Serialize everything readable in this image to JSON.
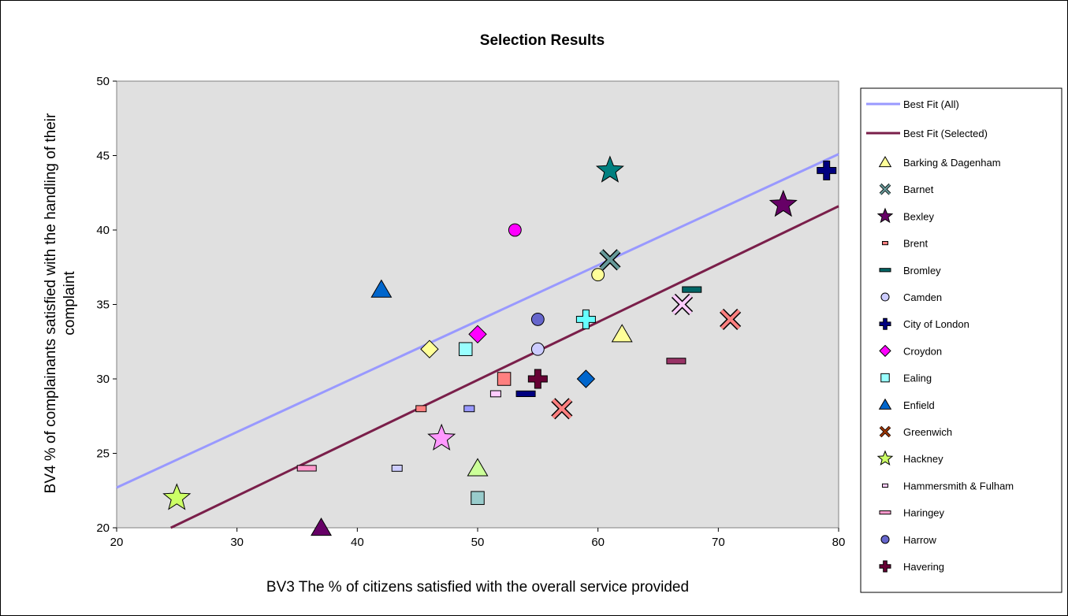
{
  "chart_data": {
    "type": "scatter",
    "title": "Selection Results",
    "xlabel": "BV3  The % of citizens satisfied with the overall service provided",
    "ylabel_lines": [
      "BV4  % of complainants satisfied with the handling of their",
      "complaint"
    ],
    "xlim": [
      20,
      80
    ],
    "ylim": [
      20,
      50
    ],
    "xticks": [
      20,
      30,
      40,
      50,
      60,
      70,
      80
    ],
    "yticks": [
      20,
      25,
      30,
      35,
      40,
      45,
      50
    ],
    "grid": false,
    "legend_position": "right",
    "plot_background": "#e0e0e0",
    "lines": [
      {
        "name": "Best Fit (All)",
        "color": "#9999ff",
        "x": [
          20,
          80
        ],
        "y": [
          22.7,
          45.1
        ]
      },
      {
        "name": "Best Fit (Selected)",
        "color": "#7a1f4a",
        "x": [
          24.5,
          80
        ],
        "y": [
          20,
          41.6
        ]
      }
    ],
    "series": [
      {
        "name": "Barking & Dagenham",
        "marker": "triangle",
        "color": "#ffff99",
        "points": [
          [
            62,
            33
          ]
        ]
      },
      {
        "name": "Barnet",
        "marker": "x",
        "color": "#669999",
        "points": [
          [
            61,
            38
          ]
        ]
      },
      {
        "name": "Bexley",
        "marker": "star",
        "color": "#660066",
        "points": [
          [
            75.4,
            41.7
          ]
        ]
      },
      {
        "name": "Brent",
        "marker": "smallrect",
        "color": "#ff8080",
        "points": [
          [
            45.3,
            28
          ]
        ]
      },
      {
        "name": "Bromley",
        "marker": "dash",
        "color": "#006666",
        "points": [
          [
            67.8,
            36
          ]
        ]
      },
      {
        "name": "Camden",
        "marker": "circle",
        "color": "#ccccff",
        "points": [
          [
            55,
            32
          ]
        ]
      },
      {
        "name": "City of London",
        "marker": "plus",
        "color": "#000080",
        "points": [
          [
            79,
            44
          ]
        ]
      },
      {
        "name": "Croydon",
        "marker": "diamond",
        "color": "#ff00ff",
        "points": [
          [
            50,
            33
          ]
        ]
      },
      {
        "name": "Ealing",
        "marker": "square",
        "color": "#99ffff",
        "points": [
          [
            49,
            32
          ]
        ]
      },
      {
        "name": "Enfield",
        "marker": "triangle",
        "color": "#0066cc",
        "points": [
          [
            42,
            36
          ]
        ]
      },
      {
        "name": "Greenwich",
        "marker": "x",
        "color": "#993300",
        "points": []
      },
      {
        "name": "Hackney",
        "marker": "star",
        "color": "#ccff66",
        "points": [
          [
            25,
            22
          ]
        ]
      },
      {
        "name": "Hammersmith & Fulham",
        "marker": "smallrect",
        "color": "#ffccff",
        "points": [
          [
            51.5,
            29
          ]
        ]
      },
      {
        "name": "Haringey",
        "marker": "dash",
        "color": "#ff99cc",
        "points": [
          [
            35.8,
            24
          ]
        ]
      },
      {
        "name": "Harrow",
        "marker": "circle",
        "color": "#6666cc",
        "points": [
          [
            55,
            34
          ]
        ]
      },
      {
        "name": "Havering",
        "marker": "plus",
        "color": "#660033",
        "points": [
          [
            55,
            30
          ]
        ]
      },
      {
        "name": "",
        "marker": "star",
        "color": "#008080",
        "legend": false,
        "points": [
          [
            61,
            44
          ]
        ]
      },
      {
        "name": "",
        "marker": "circle",
        "color": "#ff00ff",
        "legend": false,
        "points": [
          [
            53.1,
            40
          ]
        ]
      },
      {
        "name": "",
        "marker": "circle",
        "color": "#ffff99",
        "legend": false,
        "points": [
          [
            60,
            37
          ]
        ]
      },
      {
        "name": "",
        "marker": "x",
        "color": "#ffccff",
        "legend": false,
        "points": [
          [
            67,
            35
          ]
        ]
      },
      {
        "name": "",
        "marker": "x",
        "color": "#ff8080",
        "legend": false,
        "points": [
          [
            71,
            34
          ],
          [
            57,
            28
          ]
        ]
      },
      {
        "name": "",
        "marker": "plus",
        "color": "#66ffff",
        "legend": false,
        "points": [
          [
            59,
            34
          ]
        ]
      },
      {
        "name": "",
        "marker": "diamond",
        "color": "#ffff99",
        "legend": false,
        "points": [
          [
            46,
            32
          ]
        ]
      },
      {
        "name": "",
        "marker": "dash",
        "color": "#993366",
        "legend": false,
        "points": [
          [
            66.5,
            31.2
          ]
        ]
      },
      {
        "name": "",
        "marker": "square",
        "color": "#ff8080",
        "legend": false,
        "points": [
          [
            52.2,
            30
          ]
        ]
      },
      {
        "name": "",
        "marker": "diamond",
        "color": "#0066cc",
        "legend": false,
        "points": [
          [
            59,
            30
          ]
        ]
      },
      {
        "name": "",
        "marker": "dash",
        "color": "#000080",
        "legend": false,
        "points": [
          [
            54,
            29
          ]
        ]
      },
      {
        "name": "",
        "marker": "smallrect",
        "color": "#9999ff",
        "legend": false,
        "points": [
          [
            49.3,
            28
          ]
        ]
      },
      {
        "name": "",
        "marker": "star",
        "color": "#ff99ff",
        "legend": false,
        "points": [
          [
            47,
            26
          ]
        ]
      },
      {
        "name": "",
        "marker": "triangle",
        "color": "#ccff99",
        "legend": false,
        "points": [
          [
            50,
            24
          ]
        ]
      },
      {
        "name": "",
        "marker": "smallrect",
        "color": "#ccccff",
        "legend": false,
        "points": [
          [
            43.3,
            24
          ]
        ]
      },
      {
        "name": "",
        "marker": "square",
        "color": "#99cccc",
        "legend": false,
        "points": [
          [
            50,
            22
          ]
        ]
      },
      {
        "name": "",
        "marker": "triangle",
        "color": "#660066",
        "legend": false,
        "points": [
          [
            37,
            20
          ]
        ]
      }
    ]
  }
}
